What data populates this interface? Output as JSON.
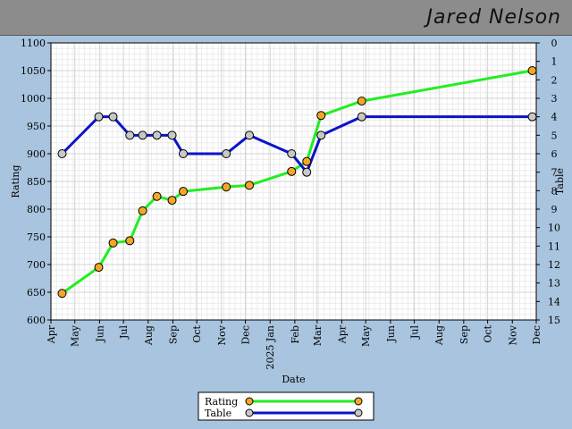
{
  "header": {
    "player_name": "Jared Nelson"
  },
  "colors": {
    "rating_line": "#22ee22",
    "rating_marker": "#f5a623",
    "table_line": "#0a14cc",
    "table_marker": "#c8c8c8",
    "plot_bg": "#ffffff",
    "page_bg": "#a8c4de",
    "header_bg": "#8c8c8c"
  },
  "chart_data": {
    "type": "line",
    "xlabel": "Date",
    "ylabel": "Rating",
    "y2label": "Table",
    "ylim": [
      600,
      1100
    ],
    "y2lim": [
      0,
      15
    ],
    "y2_inverted": true,
    "xlim": [
      "2024-04-01",
      "2025-12-01"
    ],
    "yticks": [
      600,
      650,
      700,
      750,
      800,
      850,
      900,
      950,
      1000,
      1050,
      1100
    ],
    "y2ticks": [
      0,
      1,
      2,
      3,
      4,
      5,
      6,
      7,
      8,
      9,
      10,
      11,
      12,
      13,
      14,
      15
    ],
    "xticks": [
      {
        "date": "2024-04-01",
        "label": "Apr"
      },
      {
        "date": "2024-05-01",
        "label": "May"
      },
      {
        "date": "2024-06-01",
        "label": "Jun"
      },
      {
        "date": "2024-07-01",
        "label": "Jul"
      },
      {
        "date": "2024-08-01",
        "label": "Aug"
      },
      {
        "date": "2024-09-01",
        "label": "Sep"
      },
      {
        "date": "2024-10-01",
        "label": "Oct"
      },
      {
        "date": "2024-11-01",
        "label": "Nov"
      },
      {
        "date": "2024-12-01",
        "label": "Dec"
      },
      {
        "date": "2025-01-01",
        "label": "2025 Jan"
      },
      {
        "date": "2025-02-01",
        "label": "Feb"
      },
      {
        "date": "2025-03-01",
        "label": "Mar"
      },
      {
        "date": "2025-04-01",
        "label": "Apr"
      },
      {
        "date": "2025-05-01",
        "label": "May"
      },
      {
        "date": "2025-06-01",
        "label": "Jun"
      },
      {
        "date": "2025-07-01",
        "label": "Jul"
      },
      {
        "date": "2025-08-01",
        "label": "Aug"
      },
      {
        "date": "2025-09-01",
        "label": "Sep"
      },
      {
        "date": "2025-10-01",
        "label": "Oct"
      },
      {
        "date": "2025-11-01",
        "label": "Nov"
      },
      {
        "date": "2025-12-01",
        "label": "Dec"
      }
    ],
    "grid": true,
    "legend_position": "bottom-center",
    "series": [
      {
        "name": "Rating",
        "axis": "left",
        "points": [
          {
            "x": "2024-04-15",
            "y": 648
          },
          {
            "x": "2024-05-31",
            "y": 695
          },
          {
            "x": "2024-06-18",
            "y": 739
          },
          {
            "x": "2024-07-09",
            "y": 743
          },
          {
            "x": "2024-07-25",
            "y": 797
          },
          {
            "x": "2024-08-12",
            "y": 823
          },
          {
            "x": "2024-08-31",
            "y": 816
          },
          {
            "x": "2024-09-14",
            "y": 832
          },
          {
            "x": "2024-11-07",
            "y": 840
          },
          {
            "x": "2024-12-06",
            "y": 843
          },
          {
            "x": "2025-01-28",
            "y": 868
          },
          {
            "x": "2025-02-16",
            "y": 886
          },
          {
            "x": "2025-03-06",
            "y": 969
          },
          {
            "x": "2025-04-26",
            "y": 995
          },
          {
            "x": "2025-11-26",
            "y": 1050
          }
        ]
      },
      {
        "name": "Table",
        "axis": "right",
        "points": [
          {
            "x": "2024-04-15",
            "y": 6
          },
          {
            "x": "2024-05-31",
            "y": 4
          },
          {
            "x": "2024-06-18",
            "y": 4
          },
          {
            "x": "2024-07-09",
            "y": 5
          },
          {
            "x": "2024-07-25",
            "y": 5
          },
          {
            "x": "2024-08-12",
            "y": 5
          },
          {
            "x": "2024-08-31",
            "y": 5
          },
          {
            "x": "2024-09-14",
            "y": 6
          },
          {
            "x": "2024-11-07",
            "y": 6
          },
          {
            "x": "2024-12-06",
            "y": 5
          },
          {
            "x": "2025-01-28",
            "y": 6
          },
          {
            "x": "2025-02-16",
            "y": 7
          },
          {
            "x": "2025-03-06",
            "y": 5
          },
          {
            "x": "2025-04-26",
            "y": 4
          },
          {
            "x": "2025-11-26",
            "y": 4
          }
        ]
      }
    ]
  }
}
